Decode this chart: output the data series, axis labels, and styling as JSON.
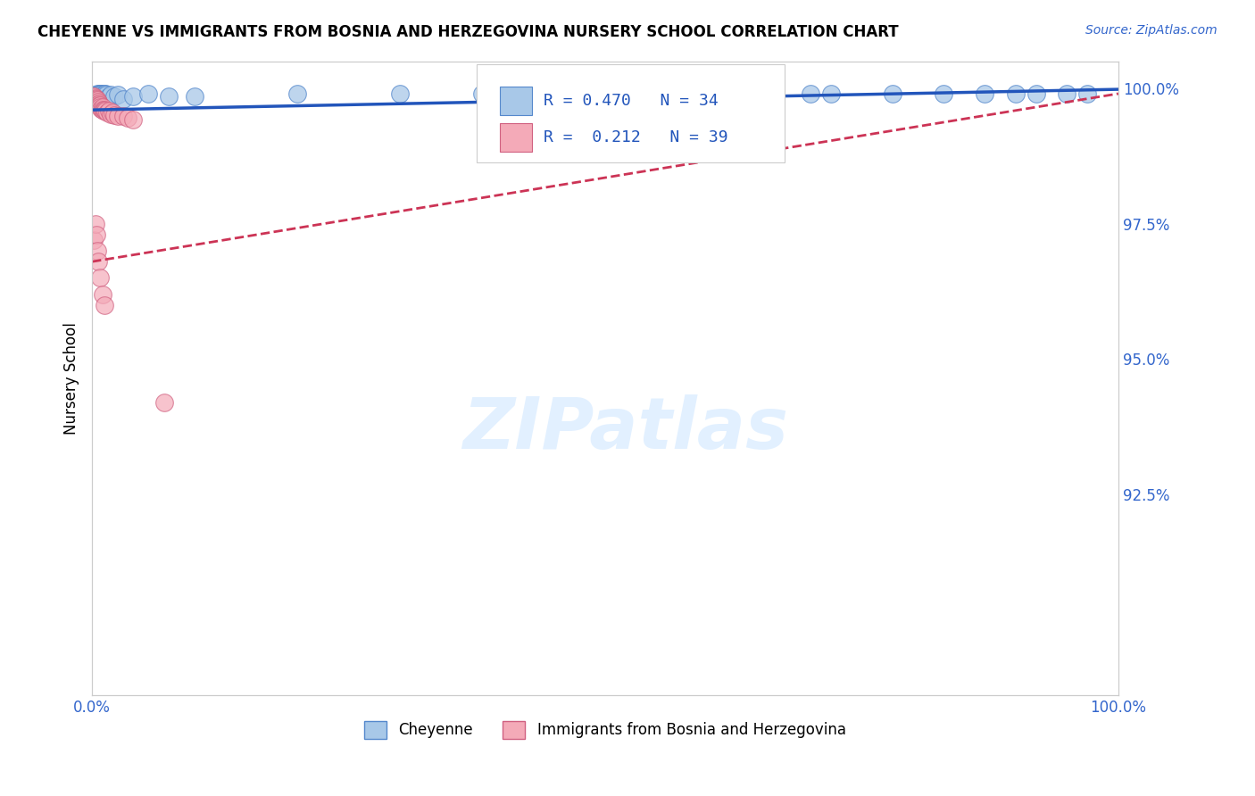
{
  "title": "CHEYENNE VS IMMIGRANTS FROM BOSNIA AND HERZEGOVINA NURSERY SCHOOL CORRELATION CHART",
  "source_text": "Source: ZipAtlas.com",
  "ylabel": "Nursery School",
  "xlim": [
    0.0,
    1.0
  ],
  "ylim": [
    0.888,
    1.005
  ],
  "yticks": [
    0.925,
    0.95,
    0.975,
    1.0
  ],
  "ytick_labels": [
    "92.5%",
    "95.0%",
    "97.5%",
    "100.0%"
  ],
  "xticks": [
    0.0,
    0.2,
    0.4,
    0.6,
    0.8,
    1.0
  ],
  "xtick_labels": [
    "0.0%",
    "",
    "",
    "",
    "",
    "100.0%"
  ],
  "blue_color": "#a8c8e8",
  "pink_color": "#f4aab8",
  "blue_edge": "#5588cc",
  "pink_edge": "#d06080",
  "trend_blue": "#2255bb",
  "trend_pink": "#cc3355",
  "R_blue": 0.47,
  "N_blue": 34,
  "R_pink": 0.212,
  "N_pink": 39,
  "blue_x": [
    0.003,
    0.005,
    0.007,
    0.008,
    0.009,
    0.01,
    0.012,
    0.013,
    0.014,
    0.016,
    0.018,
    0.022,
    0.025,
    0.03,
    0.04,
    0.055,
    0.075,
    0.1,
    0.2,
    0.3,
    0.38,
    0.48,
    0.55,
    0.6,
    0.65,
    0.7,
    0.72,
    0.78,
    0.83,
    0.87,
    0.9,
    0.92,
    0.95,
    0.97
  ],
  "blue_y": [
    0.9988,
    0.999,
    0.999,
    0.999,
    0.999,
    0.999,
    0.999,
    0.999,
    0.9988,
    0.9985,
    0.9988,
    0.9985,
    0.9988,
    0.998,
    0.9985,
    0.999,
    0.9985,
    0.9985,
    0.999,
    0.999,
    0.999,
    0.999,
    0.999,
    0.999,
    0.999,
    0.999,
    0.999,
    0.999,
    0.999,
    0.999,
    0.999,
    0.999,
    0.999,
    0.999
  ],
  "pink_x": [
    0.001,
    0.002,
    0.002,
    0.003,
    0.003,
    0.004,
    0.004,
    0.005,
    0.005,
    0.006,
    0.006,
    0.007,
    0.007,
    0.008,
    0.008,
    0.009,
    0.01,
    0.01,
    0.011,
    0.012,
    0.013,
    0.015,
    0.016,
    0.018,
    0.02,
    0.022,
    0.025,
    0.03,
    0.035,
    0.04,
    0.002,
    0.003,
    0.004,
    0.005,
    0.006,
    0.008,
    0.01,
    0.012,
    0.07
  ],
  "pink_y": [
    0.9985,
    0.9985,
    0.998,
    0.9982,
    0.9978,
    0.998,
    0.9975,
    0.9978,
    0.9972,
    0.9975,
    0.997,
    0.9972,
    0.9968,
    0.9968,
    0.9965,
    0.9962,
    0.9965,
    0.996,
    0.9958,
    0.996,
    0.9958,
    0.9955,
    0.9958,
    0.9952,
    0.9955,
    0.995,
    0.9948,
    0.9948,
    0.9945,
    0.9942,
    0.972,
    0.975,
    0.973,
    0.97,
    0.968,
    0.965,
    0.962,
    0.96,
    0.942
  ],
  "watermark": "ZIPatlas",
  "background_color": "#ffffff",
  "blue_trend_start_x": 0.0,
  "blue_trend_end_x": 1.0,
  "blue_trend_start_y": 0.996,
  "blue_trend_end_y": 0.9998,
  "pink_trend_start_x": 0.0,
  "pink_trend_end_x": 1.0,
  "pink_trend_start_y": 0.968,
  "pink_trend_end_y": 0.999
}
